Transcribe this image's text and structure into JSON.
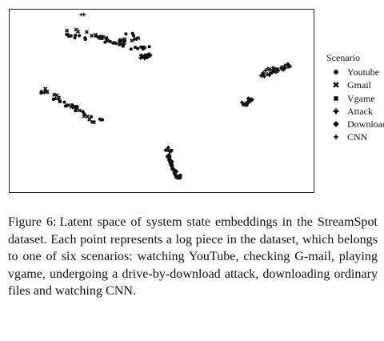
{
  "chart_data": {
    "type": "scatter",
    "title": "",
    "xlabel": "",
    "ylabel": "",
    "axes_visible": false,
    "grid": false,
    "legend_position": "right",
    "legend_title": "Scenario",
    "series": [
      {
        "name": "Youtube",
        "marker": "circle",
        "color": "#111111",
        "clusters": [
          [
            [
              -8.6,
              6.8
            ],
            [
              -5.0,
              6.1
            ],
            [
              -3.5,
              7.1
            ]
          ],
          [
            [
              -10.0,
              1.8
            ],
            [
              -7.5,
              0.3
            ],
            [
              -5.8,
              -0.8
            ]
          ]
        ]
      },
      {
        "name": "Gmail",
        "marker": "x-cross",
        "color": "#111111",
        "clusters": [
          [
            [
              -8.2,
              7.2
            ],
            [
              -4.5,
              6.2
            ],
            [
              -3.2,
              6.6
            ]
          ],
          [
            [
              -9.8,
              2.0
            ],
            [
              -8.0,
              0.8
            ],
            [
              -6.4,
              -1.0
            ]
          ]
        ]
      },
      {
        "name": "Vgame",
        "marker": "square",
        "color": "#111111",
        "clusters": [
          [
            [
              -6.2,
              6.6
            ],
            [
              -4.2,
              5.7
            ],
            [
              -2.6,
              5.5
            ]
          ],
          [
            [
              -1.6,
              -3.0
            ],
            [
              -1.4,
              -4.6
            ],
            [
              -0.9,
              -5.6
            ]
          ]
        ]
      },
      {
        "name": "Attack",
        "marker": "plus",
        "color": "#111111",
        "clusters": [
          [
            [
              -3.3,
              4.8
            ],
            [
              -2.8,
              5.0
            ]
          ],
          [
            [
              4.6,
              3.2
            ],
            [
              6.4,
              4.0
            ]
          ]
        ]
      },
      {
        "name": "Download",
        "marker": "diamond",
        "color": "#111111",
        "clusters": [
          [
            [
              -1.7,
              -3.1
            ],
            [
              -1.3,
              -4.6
            ],
            [
              -0.8,
              -5.7
            ]
          ],
          [
            [
              3.3,
              0.6
            ],
            [
              4.1,
              1.3
            ]
          ]
        ]
      },
      {
        "name": "CNN",
        "marker": "star4",
        "color": "#111111",
        "clusters": [
          [
            [
              -7.2,
              8.5
            ]
          ],
          [
            [
              4.8,
              3.6
            ],
            [
              6.3,
              4.1
            ]
          ]
        ]
      }
    ],
    "xlim": [
      -12,
      8
    ],
    "ylim": [
      -7,
      9
    ]
  },
  "caption": {
    "label": "Figure 6:",
    "text": "Latent space of system state embeddings in the StreamSpot dataset. Each point represents a log piece in the dataset, which belongs to one of six scenarios: watching YouTube, checking G-mail, playing vgame, undergoing a drive-by-download attack, downloading ordinary files and watching CNN."
  }
}
